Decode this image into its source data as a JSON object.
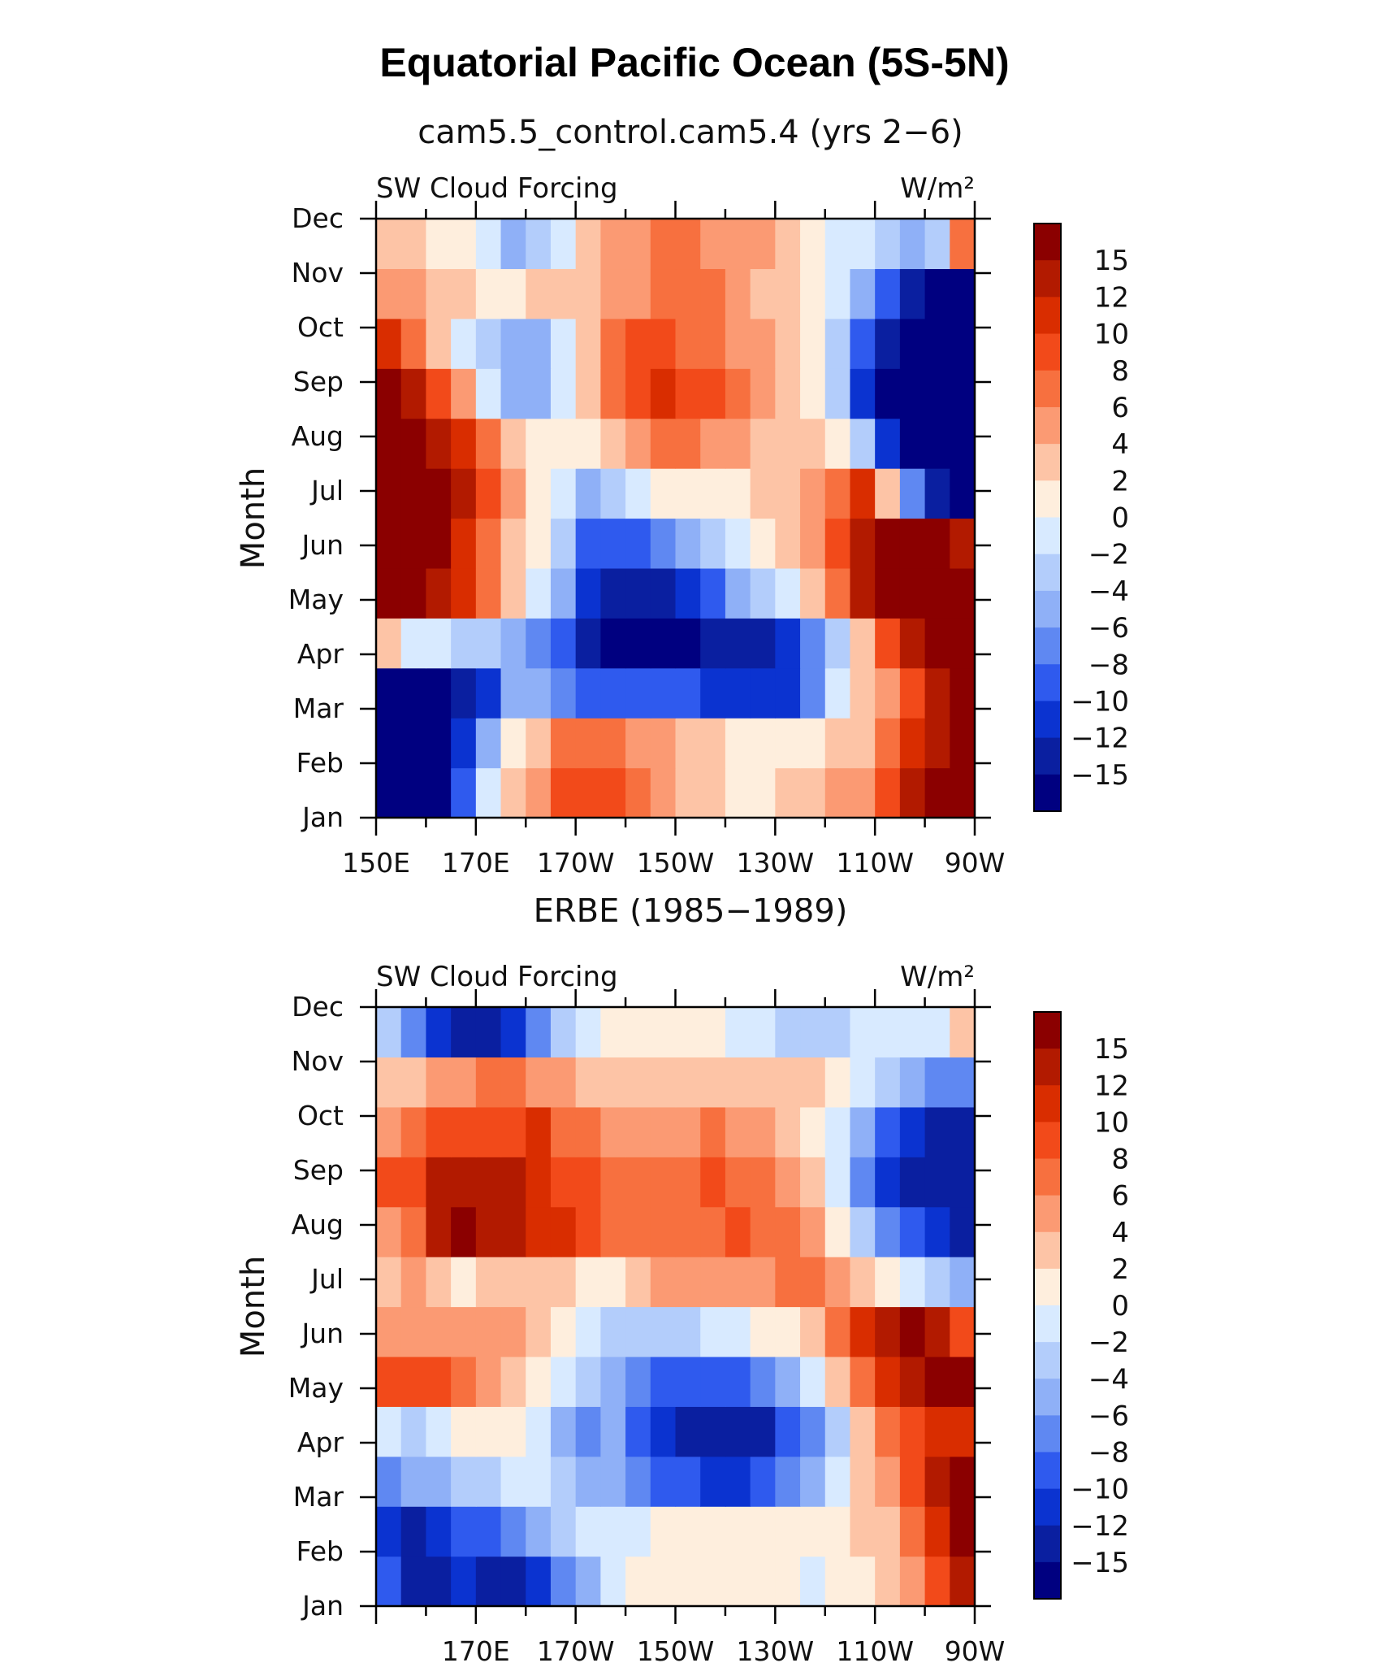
{
  "title": "Equatorial Pacific Ocean (5S-5N)",
  "colorscale": {
    "levels": [
      "15",
      "12",
      "10",
      "8",
      "6",
      "4",
      "2",
      "0",
      "−2",
      "−4",
      "−6",
      "−8",
      "−10",
      "−12",
      "−15"
    ],
    "colors": [
      "#8b0000",
      "#b21a00",
      "#d92d00",
      "#f24a1a",
      "#f7703f",
      "#fb9a73",
      "#fdc4a6",
      "#feeedd",
      "#d8eaff",
      "#b3cdfb",
      "#8fb0f7",
      "#5f88f2",
      "#2f5aee",
      "#0b33d0",
      "#0a1fa0",
      "#000080"
    ]
  },
  "chart_data": [
    {
      "type": "heatmap",
      "subtitle": "cam5.5_control.cam5.4 (yrs 2−6)",
      "left_label": "SW Cloud Forcing",
      "units": "W/m²",
      "ylabel": "Month",
      "y": [
        "Jan",
        "Feb",
        "Mar",
        "Apr",
        "May",
        "Jun",
        "Jul",
        "Aug",
        "Sep",
        "Oct",
        "Nov",
        "Dec"
      ],
      "x_ticks": [
        "150E",
        "170E",
        "170W",
        "150W",
        "130W",
        "110W",
        "90W"
      ],
      "x_range": [
        "150E",
        "90W"
      ],
      "grid": false,
      "z": [
        [
          -18,
          -18,
          -17,
          -10,
          -2,
          3,
          5,
          8,
          9,
          8,
          6,
          5,
          3,
          2,
          0,
          1,
          2,
          3,
          4,
          5,
          8,
          12,
          16,
          18
        ],
        [
          -18,
          -18,
          -17,
          -12,
          -6,
          0,
          3,
          6,
          7,
          6,
          5,
          4,
          3,
          2,
          1,
          1,
          0,
          1,
          2,
          3,
          6,
          10,
          14,
          18
        ],
        [
          -18,
          -18,
          -17,
          -14,
          -12,
          -6,
          -5,
          -8,
          -10,
          -10,
          -9,
          -9,
          -10,
          -11,
          -12,
          -12,
          -11,
          -7,
          -2,
          2,
          4,
          8,
          13,
          18
        ],
        [
          2,
          -1,
          -2,
          -3,
          -4,
          -6,
          -8,
          -10,
          -14,
          -16,
          -17,
          -17,
          -16,
          -15,
          -14,
          -13,
          -12,
          -8,
          -3,
          3,
          8,
          14,
          16,
          18
        ],
        [
          17,
          17,
          14,
          10,
          6,
          2,
          -2,
          -6,
          -11,
          -13,
          -14,
          -13,
          -12,
          -9,
          -6,
          -4,
          -2,
          2,
          6,
          12,
          16,
          18,
          18,
          18
        ],
        [
          18,
          18,
          16,
          11,
          7,
          3,
          1,
          -3,
          -9,
          -10,
          -10,
          -8,
          -6,
          -4,
          -1,
          1,
          3,
          5,
          8,
          12,
          16,
          18,
          16,
          12
        ],
        [
          18,
          18,
          16,
          12,
          8,
          4,
          1,
          -1,
          -5,
          -3,
          -1,
          0,
          1,
          1,
          1,
          2,
          3,
          4,
          7,
          10,
          2,
          -8,
          -14,
          -17
        ],
        [
          18,
          16,
          13,
          10,
          6,
          3,
          1,
          0,
          1,
          3,
          5,
          6,
          6,
          5,
          4,
          3,
          3,
          2,
          0,
          -4,
          -12,
          -16,
          -18,
          -18
        ],
        [
          17,
          14,
          8,
          4,
          -2,
          -6,
          -5,
          -2,
          3,
          6,
          9,
          10,
          9,
          8,
          6,
          4,
          3,
          1,
          -4,
          -12,
          -17,
          -18,
          -18,
          -18
        ],
        [
          10,
          6,
          2,
          -1,
          -4,
          -6,
          -5,
          -2,
          3,
          6,
          8,
          8,
          7,
          6,
          5,
          4,
          3,
          1,
          -3,
          -10,
          -15,
          -17,
          -18,
          -18
        ],
        [
          5,
          4,
          3,
          2,
          1,
          1,
          2,
          2,
          3,
          4,
          5,
          6,
          6,
          6,
          5,
          3,
          2,
          1,
          -2,
          -6,
          -10,
          -14,
          -16,
          -16
        ],
        [
          2,
          2,
          1,
          0,
          -2,
          -5,
          -4,
          -1,
          2,
          4,
          5,
          6,
          6,
          5,
          5,
          4,
          2,
          1,
          -1,
          -2,
          -4,
          -6,
          -4,
          6
        ]
      ]
    },
    {
      "type": "heatmap",
      "subtitle": "ERBE (1985−1989)",
      "left_label": "SW Cloud Forcing",
      "units": "W/m²",
      "ylabel": "Month",
      "y": [
        "Jan",
        "Feb",
        "Mar",
        "Apr",
        "May",
        "Jun",
        "Jul",
        "Aug",
        "Sep",
        "Oct",
        "Nov",
        "Dec"
      ],
      "x_ticks": [
        "170E",
        "170W",
        "150W",
        "130W",
        "110W",
        "90W"
      ],
      "x_range": [
        "150E",
        "90W"
      ],
      "grid": false,
      "z": [
        [
          -10,
          -13,
          -14,
          -12,
          -14,
          -13,
          -11,
          -8,
          -6,
          -2,
          1,
          1,
          1,
          0,
          0,
          0,
          0,
          -1,
          0,
          1,
          2,
          5,
          9,
          12
        ],
        [
          -12,
          -13,
          -12,
          -10,
          -9,
          -8,
          -6,
          -3,
          -1,
          -2,
          -1,
          0,
          0,
          1,
          1,
          1,
          1,
          0,
          1,
          2,
          3,
          6,
          10,
          15
        ],
        [
          -7,
          -6,
          -5,
          -3,
          -3,
          -2,
          -1,
          -3,
          -5,
          -6,
          -8,
          -9,
          -10,
          -11,
          -11,
          -10,
          -8,
          -5,
          -2,
          2,
          5,
          9,
          12,
          15
        ],
        [
          -2,
          -3,
          -2,
          0,
          1,
          0,
          -2,
          -6,
          -7,
          -6,
          -9,
          -11,
          -13,
          -14,
          -14,
          -13,
          -10,
          -7,
          -3,
          2,
          6,
          9,
          10,
          11
        ],
        [
          9,
          8,
          8,
          6,
          4,
          2,
          0,
          -2,
          -4,
          -5,
          -7,
          -9,
          -10,
          -10,
          -9,
          -7,
          -5,
          -2,
          2,
          6,
          10,
          14,
          15,
          15
        ],
        [
          4,
          5,
          5,
          4,
          5,
          4,
          2,
          0,
          -2,
          -3,
          -3,
          -3,
          -3,
          -2,
          -1,
          0,
          1,
          3,
          6,
          10,
          13,
          15,
          13,
          8
        ],
        [
          3,
          4,
          2,
          1,
          2,
          2,
          3,
          2,
          0,
          1,
          3,
          4,
          4,
          5,
          4,
          5,
          6,
          6,
          5,
          3,
          0,
          -2,
          -4,
          -6
        ],
        [
          5,
          6,
          12,
          15,
          14,
          13,
          11,
          10,
          8,
          7,
          6,
          6,
          7,
          7,
          8,
          7,
          6,
          4,
          1,
          -3,
          -8,
          -10,
          -12,
          -14
        ],
        [
          8,
          9,
          13,
          14,
          13,
          12,
          11,
          9,
          8,
          7,
          6,
          6,
          7,
          8,
          7,
          6,
          5,
          2,
          -2,
          -7,
          -12,
          -13,
          -14,
          -15
        ],
        [
          5,
          6,
          8,
          9,
          9,
          8,
          10,
          7,
          6,
          5,
          5,
          5,
          5,
          6,
          5,
          4,
          3,
          1,
          -2,
          -6,
          -9,
          -11,
          -13,
          -13
        ],
        [
          2,
          3,
          4,
          5,
          6,
          6,
          5,
          4,
          3,
          3,
          3,
          3,
          3,
          3,
          3,
          3,
          2,
          2,
          0,
          -2,
          -4,
          -6,
          -7,
          -7
        ],
        [
          -3,
          -8,
          -12,
          -14,
          -14,
          -12,
          -8,
          -4,
          -1,
          0,
          0,
          1,
          1,
          0,
          -1,
          -2,
          -3,
          -3,
          -3,
          -2,
          -2,
          -2,
          -1,
          2
        ]
      ]
    }
  ]
}
